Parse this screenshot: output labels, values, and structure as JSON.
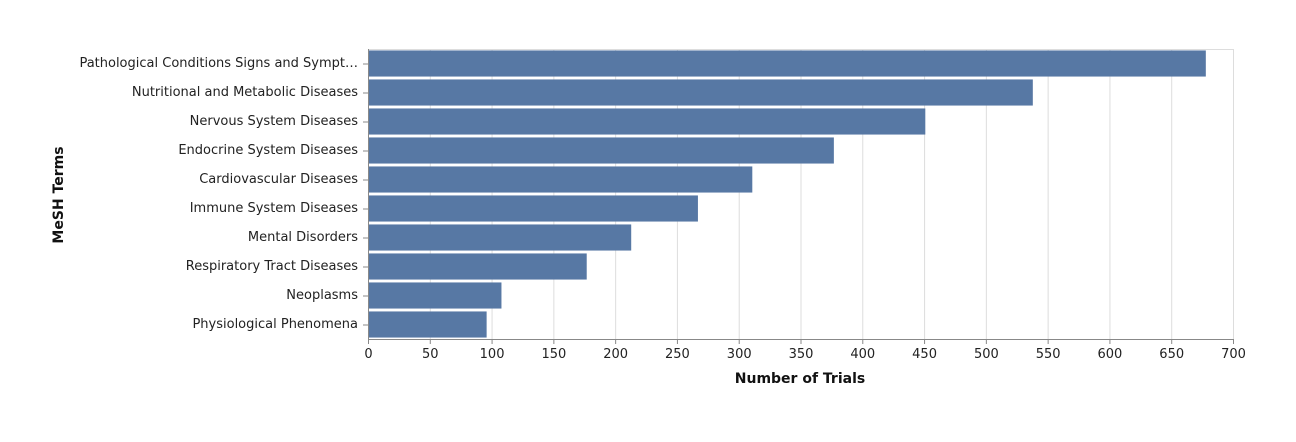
{
  "chart_data": {
    "type": "bar",
    "orientation": "horizontal",
    "categories": [
      "Pathological Conditions Signs and Sympt…",
      "Nutritional and Metabolic Diseases",
      "Nervous System Diseases",
      "Endocrine System Diseases",
      "Cardiovascular Diseases",
      "Immune System Diseases",
      "Mental Disorders",
      "Respiratory Tract Diseases",
      "Neoplasms",
      "Physiological Phenomena"
    ],
    "values": [
      678,
      538,
      451,
      377,
      311,
      267,
      213,
      177,
      108,
      96
    ],
    "xlabel": "Number of Trials",
    "ylabel": "MeSH Terms",
    "xlim": [
      0,
      700
    ],
    "xticks": [
      0,
      50,
      100,
      150,
      200,
      250,
      300,
      350,
      400,
      450,
      500,
      550,
      600,
      650,
      700
    ],
    "grid": true,
    "bar_color": "#5778a4"
  }
}
